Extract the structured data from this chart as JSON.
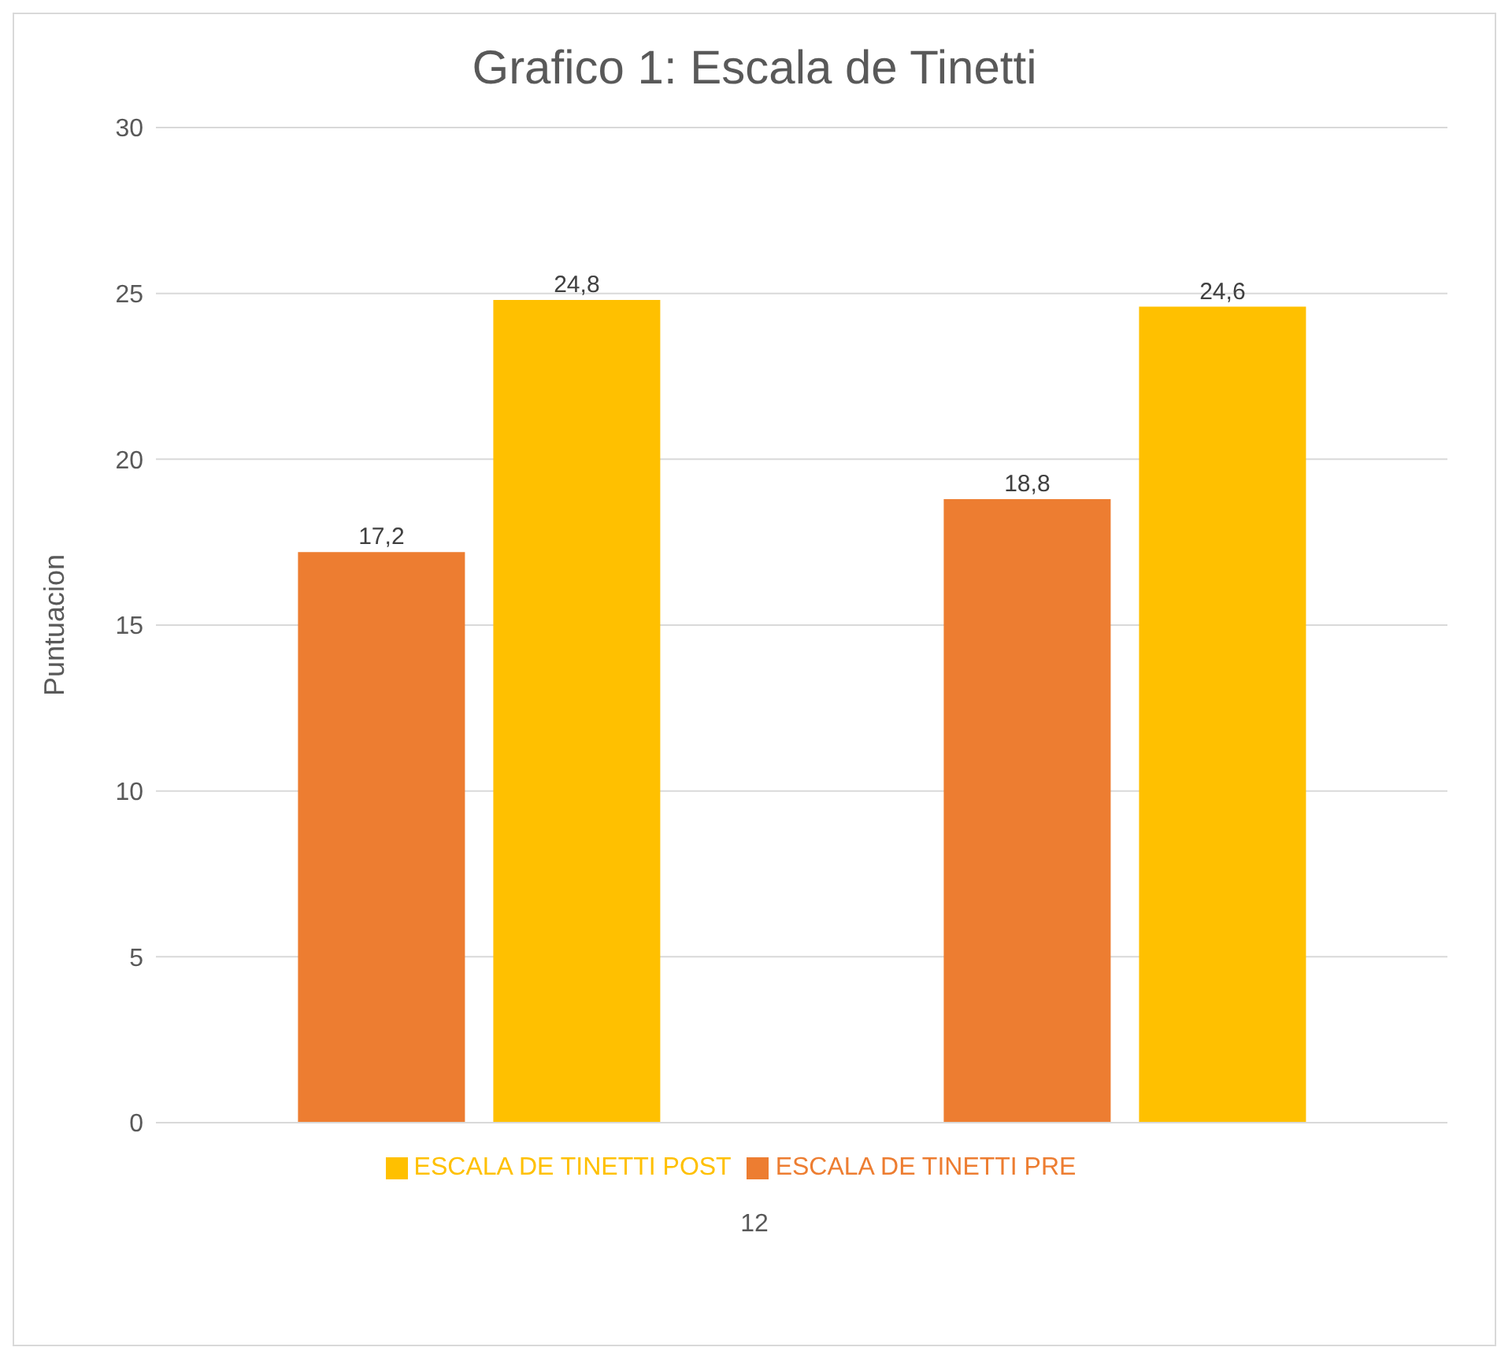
{
  "chart_data": {
    "type": "bar",
    "title": "Grafico 1: Escala de Tinetti",
    "ylabel": "Puntuacion",
    "categories": [
      null,
      null
    ],
    "series": [
      {
        "name": "ESCALA DE TINETTI PRE",
        "color": "#ed7d31",
        "values": [
          17.2,
          18.8
        ],
        "value_labels": [
          "17,2",
          "18,8"
        ]
      },
      {
        "name": "ESCALA DE TINETTI POST",
        "color": "#ffc000",
        "values": [
          24.8,
          24.6
        ],
        "value_labels": [
          "24,8",
          "24,6"
        ]
      }
    ],
    "ylim": [
      0,
      30
    ],
    "yticks": [
      0,
      5,
      10,
      15,
      20,
      25,
      30
    ],
    "grid": "y",
    "legend": "bottom",
    "annotations": [
      "12"
    ]
  }
}
